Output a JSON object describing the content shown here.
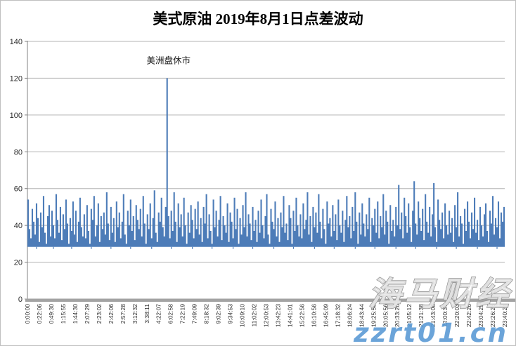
{
  "title": "美式原油 2019年8月1日点差波动",
  "watermark": {
    "brand": "海马财经",
    "site": "zzrt01.cn",
    "brand_fill": "rgba(255,255,255,0.72)",
    "brand_stroke": "#8f8f8f",
    "site_fill": "#5b9bd5",
    "site_stroke": "#ffffff"
  },
  "colors": {
    "series": "#4d7cb8",
    "grid": "#b3b3b3",
    "axis_band": "#a3a3a3",
    "axis_line": "#808080",
    "tick": "#808080"
  },
  "chart_data": {
    "type": "bar",
    "title": "美式原油 2019年8月1日点差波动",
    "xlabel": "",
    "ylabel": "",
    "ylim": [
      0,
      140
    ],
    "yticks": [
      0,
      20,
      40,
      60,
      80,
      100,
      120,
      140
    ],
    "grid": true,
    "legend": false,
    "x_tick_labels": [
      "0:00:00",
      "0:22:06",
      "0:49:30",
      "1:15:55",
      "1:44:30",
      "2:07:29",
      "2:23:02",
      "2:42:06",
      "2:57:28",
      "3:12:32",
      "3:38:11",
      "4:22:07",
      "6:02:58",
      "7:22:19",
      "7:49:09",
      "8:18:32",
      "9:02:39",
      "9:34:53",
      "10:09:10",
      "11:02:02",
      "12:00:53",
      "13:42:23",
      "14:41:01",
      "15:22:56",
      "16:10:56",
      "16:45:09",
      "17:18:32",
      "18:06:24",
      "18:43:44",
      "19:25:56",
      "20:05:56",
      "20:33:26",
      "21:05:12",
      "21:21:38",
      "21:43:06",
      "22:00:37",
      "22:20:03",
      "22:42:26",
      "23:04:29",
      "23:26:23",
      "23:40:24"
    ],
    "baseline": 28.3,
    "values": [
      54,
      38,
      33,
      49,
      42,
      35,
      52,
      44,
      31,
      47,
      39,
      56,
      36,
      30,
      45,
      51,
      34,
      48,
      40,
      33,
      57,
      43,
      36,
      50,
      32,
      46,
      38,
      54,
      41,
      30,
      44,
      37,
      53,
      35,
      48,
      31,
      42,
      55,
      39,
      34,
      46,
      33,
      51,
      37,
      30,
      49,
      43,
      56,
      34,
      40,
      52,
      31,
      45,
      38,
      47,
      35,
      58,
      41,
      32,
      50,
      36,
      44,
      31,
      53,
      39,
      47,
      33,
      42,
      57,
      35,
      30,
      48,
      40,
      54,
      37,
      45,
      32,
      51,
      43,
      38,
      49,
      34,
      56,
      41,
      30,
      46,
      38,
      52,
      33,
      44,
      59,
      36,
      31,
      47,
      42,
      55,
      39,
      34,
      50,
      120,
      45,
      33,
      48,
      37,
      58,
      42,
      31,
      52,
      39,
      46,
      34,
      55,
      40,
      30,
      47,
      36,
      51,
      43,
      33,
      49,
      38,
      53,
      35,
      44,
      31,
      50,
      41,
      57,
      33,
      46,
      37,
      30,
      54,
      39,
      48,
      34,
      43,
      56,
      32,
      45,
      40,
      36,
      52,
      31,
      47,
      42,
      33,
      55,
      38,
      49,
      30,
      44,
      35,
      51,
      39,
      58,
      34,
      46,
      41,
      32,
      50,
      37,
      43,
      31,
      48,
      36,
      54,
      40,
      33,
      45,
      57,
      35,
      30,
      49,
      42,
      38,
      53,
      34,
      44,
      31,
      47,
      39,
      56,
      36,
      41,
      32,
      51,
      44,
      30,
      48,
      37,
      55,
      40,
      34,
      46,
      33,
      52,
      38,
      43,
      58,
      35,
      45,
      31,
      50,
      39,
      47,
      36,
      57,
      42,
      33,
      49,
      38,
      30,
      53,
      41,
      44,
      34,
      51,
      37,
      46,
      32,
      54,
      40,
      36,
      48,
      31,
      43,
      56,
      39,
      45,
      33,
      50,
      37,
      58,
      42,
      30,
      47,
      35,
      52,
      41,
      34,
      46,
      38,
      55,
      31,
      44,
      40,
      49,
      36,
      53,
      33,
      45,
      39,
      57,
      35,
      48,
      42,
      30,
      51,
      37,
      43,
      34,
      50,
      40,
      62,
      38,
      47,
      33,
      55,
      45,
      36,
      52,
      39,
      31,
      48,
      64,
      41,
      35,
      53,
      44,
      37,
      49,
      32,
      57,
      42,
      36,
      50,
      34,
      46,
      63,
      39,
      31,
      54,
      43,
      38,
      47,
      33,
      52,
      40,
      35,
      48,
      36,
      44,
      31,
      51,
      39,
      58,
      34,
      45,
      41,
      30,
      49,
      37,
      53,
      42,
      33,
      47,
      38,
      55,
      36,
      43,
      32,
      50,
      40,
      34,
      46,
      52,
      37,
      31,
      48,
      41,
      56,
      35,
      44,
      39,
      53,
      33,
      47,
      42,
      50
    ],
    "dips": {
      "indices": [
        6,
        18,
        31,
        45,
        59,
        73,
        88,
        102,
        117,
        131,
        146,
        160,
        175,
        189,
        204,
        218,
        233,
        247,
        262,
        276,
        291,
        305,
        320,
        334
      ],
      "value": 27.2
    },
    "annotation": {
      "text": "美洲盘休市",
      "index": 99,
      "label_y": 128
    }
  }
}
